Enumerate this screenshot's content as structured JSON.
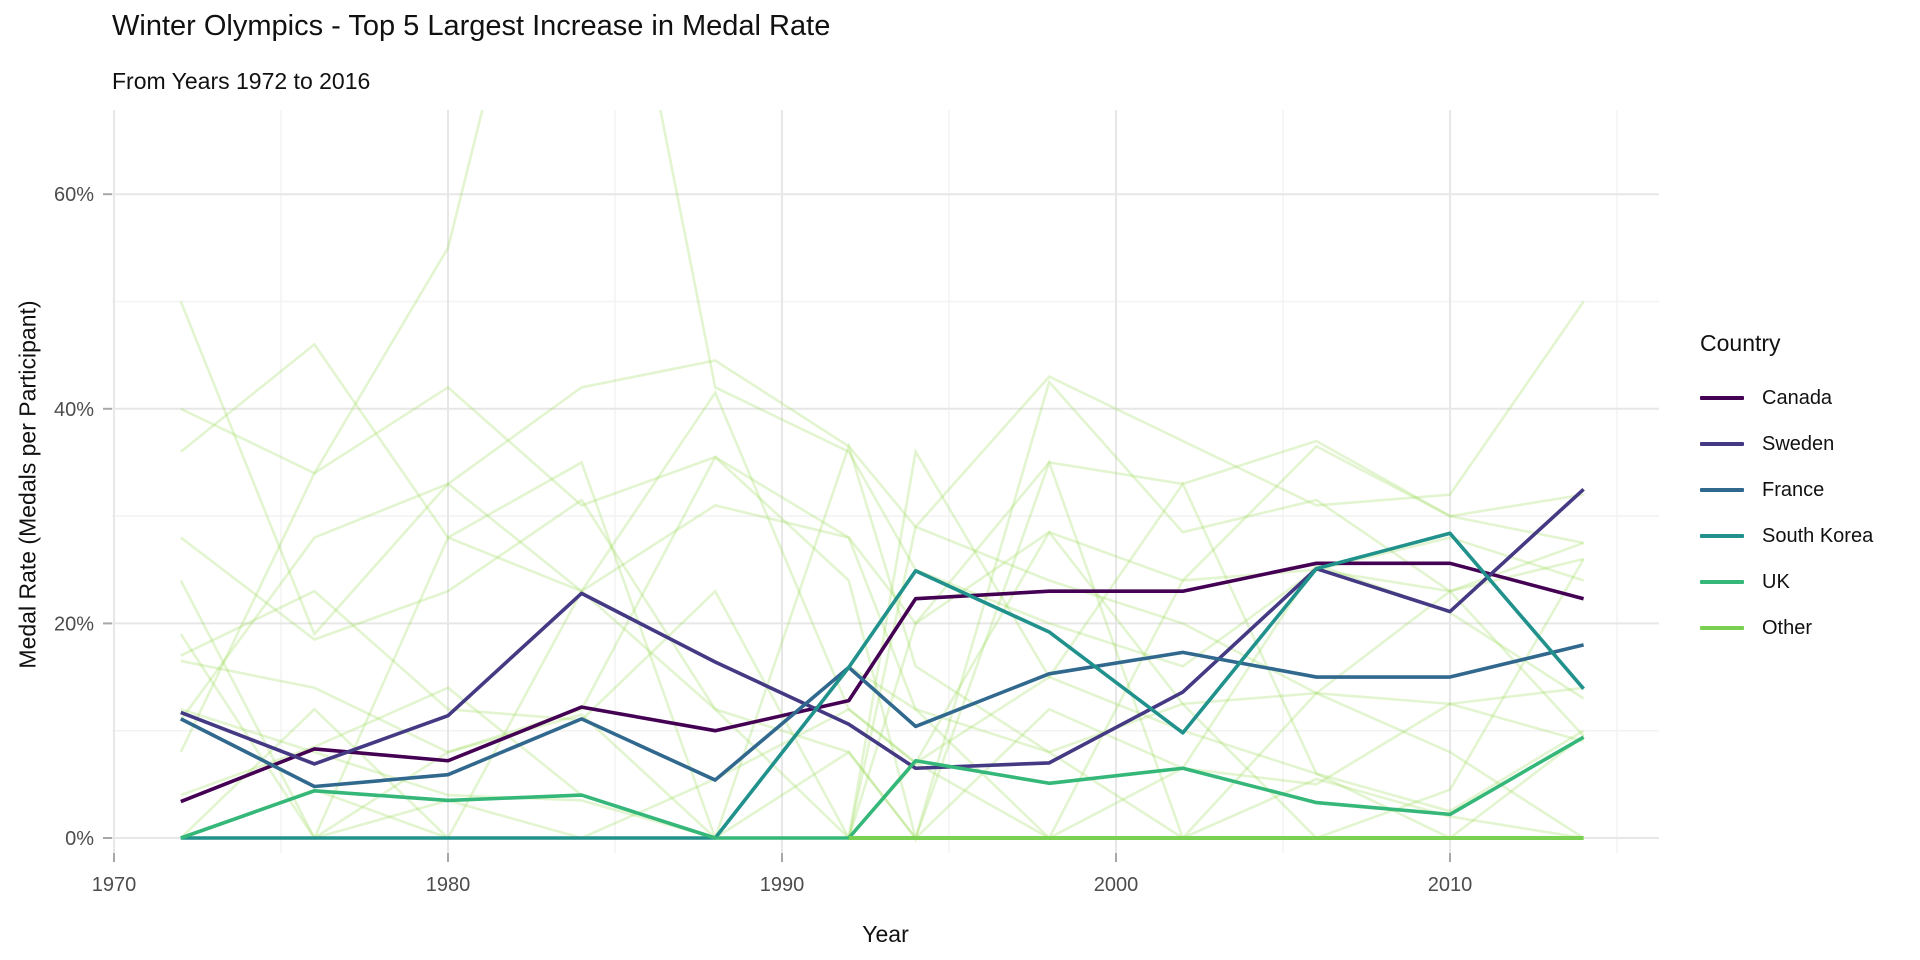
{
  "title": "Winter Olympics - Top 5 Largest Increase in Medal Rate",
  "subtitle": "From Years 1972 to 2016",
  "axis": {
    "x_label": "Year",
    "y_label": "Medal Rate (Medals per Participant)"
  },
  "legend": {
    "title": "Country"
  },
  "colors": {
    "grid_major": "#e7e7e7",
    "grid_minor": "#f3f3f3",
    "tick_text": "#4d4d4d",
    "tick_mark": "#a8a8a8",
    "background_line": "#90D743"
  },
  "chart_data": {
    "type": "line",
    "title": "Winter Olympics - Top 5 Largest Increase in Medal Rate",
    "subtitle": "From Years 1972 to 2016",
    "xlabel": "Year",
    "ylabel": "Medal Rate (Medals per Participant)",
    "legend_title": "Country",
    "legend_position": "right",
    "grid": true,
    "xlim": [
      1969.9,
      2016.1
    ],
    "ylim": [
      0,
      68
    ],
    "x_ticks": [
      1970,
      1980,
      1990,
      2000,
      2010
    ],
    "x_minor": [
      1975,
      1985,
      1995,
      2005,
      2015
    ],
    "y_ticks": [
      "0%",
      "20%",
      "40%",
      "60%"
    ],
    "y_tick_values": [
      0,
      20,
      40,
      60
    ],
    "y_minor": [
      10,
      30,
      50
    ],
    "x": [
      1972,
      1976,
      1980,
      1984,
      1988,
      1992,
      1994,
      1998,
      2002,
      2006,
      2010,
      2014
    ],
    "series": [
      {
        "name": "Canada",
        "color": "#440154",
        "values": [
          3.4,
          8.3,
          7.2,
          12.2,
          10.0,
          12.8,
          22.3,
          23.0,
          23.0,
          25.6,
          25.6,
          22.3
        ]
      },
      {
        "name": "Sweden",
        "color": "#443983",
        "values": [
          11.7,
          6.9,
          11.4,
          22.8,
          16.4,
          10.6,
          6.5,
          7.0,
          13.6,
          25.1,
          21.1,
          32.5
        ]
      },
      {
        "name": "France",
        "color": "#31688E",
        "values": [
          11.1,
          4.8,
          5.9,
          11.1,
          5.4,
          15.9,
          10.4,
          15.3,
          17.3,
          15.0,
          15.0,
          18.0
        ]
      },
      {
        "name": "South Korea",
        "color": "#21918C",
        "values": [
          0,
          0,
          0,
          0,
          0,
          15.9,
          24.9,
          19.2,
          9.8,
          25.1,
          28.4,
          13.9
        ]
      },
      {
        "name": "UK",
        "color": "#35B779",
        "values": [
          0,
          4.4,
          3.5,
          4.0,
          0,
          0,
          7.2,
          5.1,
          6.5,
          3.3,
          2.2,
          9.4
        ]
      },
      {
        "name": "Other",
        "color": "#7AD151",
        "values": [
          null,
          null,
          null,
          null,
          null,
          0,
          0,
          0,
          0,
          0,
          0,
          0
        ]
      }
    ],
    "background_series": {
      "name": "Other (non-highlighted countries)",
      "color": "#90D743",
      "opacity": 0.25,
      "values": [
        [
          50,
          19,
          33,
          42,
          44.5,
          36.5,
          29,
          43,
          37,
          31,
          32,
          50
        ],
        [
          40,
          34,
          42,
          31,
          35.5,
          28,
          20,
          35,
          33,
          37,
          30,
          27.5
        ],
        [
          36,
          46,
          28,
          23,
          41.5,
          12,
          7,
          28.5,
          24,
          25,
          23,
          26
        ],
        [
          8,
          34,
          55,
          105,
          42,
          36,
          25,
          20,
          16,
          25,
          28,
          24
        ],
        [
          19,
          0,
          28,
          35,
          0,
          16,
          12,
          8,
          12.5,
          13.5,
          12.5,
          14
        ],
        [
          17,
          23,
          12,
          11,
          23,
          0,
          7,
          15,
          10,
          6,
          2.5,
          10
        ],
        [
          12,
          8,
          4,
          3.5,
          0,
          8,
          0,
          12,
          6.5,
          5,
          12.5,
          9
        ],
        [
          28,
          18.5,
          23,
          31.5,
          12,
          0,
          29,
          24,
          20,
          13.5,
          23,
          27.5
        ],
        [
          0,
          4.5,
          0,
          0,
          5.5,
          12,
          7,
          0,
          6.5,
          25.5,
          21,
          13
        ],
        [
          0,
          0,
          3.5,
          0,
          0,
          36.5,
          16,
          8,
          0,
          5.5,
          2,
          0
        ],
        [
          16.5,
          14,
          8,
          12,
          35.5,
          24,
          0,
          42.5,
          28.5,
          31.5,
          23,
          9.5
        ],
        [
          4,
          8.5,
          14,
          4,
          0,
          0,
          20,
          28.5,
          12.5,
          0,
          4.5,
          26
        ],
        [
          11,
          28,
          33,
          23,
          31,
          28,
          12,
          0,
          24,
          36.5,
          30,
          32
        ],
        [
          0,
          12,
          0,
          23,
          12,
          8,
          0,
          35,
          0,
          13.5,
          8,
          0
        ],
        [
          24,
          0,
          8,
          11.5,
          0,
          0,
          36,
          15,
          33,
          6,
          0,
          9.5
        ]
      ]
    }
  }
}
